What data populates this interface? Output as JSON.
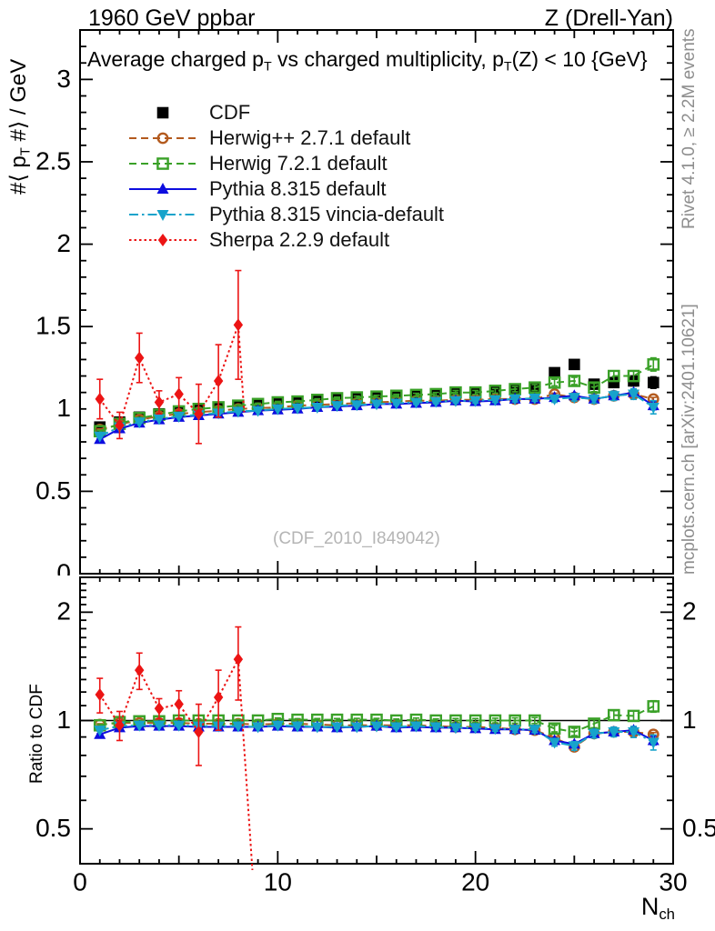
{
  "header": {
    "left": "1960 GeV ppbar",
    "right": "Z (Drell-Yan)"
  },
  "title_parts": {
    "pre": "Average charged p",
    "sub1": "T",
    "mid": " vs charged multiplicity, p",
    "sub2": "T",
    "post": "(Z) < 10 {GeV}"
  },
  "side_notes": {
    "top": "Rivet 4.1.0, ≥ 2.2M events",
    "bottom": "mcplots.cern.ch [arXiv:2401.10621]"
  },
  "watermark": "(CDF_2010_I849042)",
  "axes": {
    "x": {
      "min": 0,
      "max": 30,
      "major": [
        0,
        10,
        20,
        30
      ],
      "labels": [
        "0",
        "10",
        "20",
        "30"
      ],
      "mid_step": 5,
      "minor_step": 1,
      "label": "N",
      "label_sub": "ch"
    },
    "y_main": {
      "scale": "linear",
      "min": 0,
      "max": 3.3,
      "minor_step": 0.1,
      "major": [
        0,
        0.5,
        1,
        1.5,
        2,
        2.5,
        3
      ],
      "labels": [
        "0",
        "0.5",
        "1",
        "1.5",
        "2",
        "2.5",
        "3"
      ],
      "title_pre": "#⟨ p",
      "title_sub": "T",
      "title_post": " #⟩ / GeV"
    },
    "y_ratio": {
      "scale": "log",
      "min": 0.4,
      "max": 2.5,
      "major": [
        0.5,
        1,
        2
      ],
      "labels": [
        "0.5",
        "1",
        "2"
      ],
      "minor": [
        0.4,
        0.6,
        0.7,
        0.8,
        0.9,
        1.1,
        1.2,
        1.3,
        1.4,
        1.5,
        1.6,
        1.7,
        1.8,
        1.9,
        2.1,
        2.2,
        2.3,
        2.4
      ],
      "title": "Ratio to CDF",
      "reference_line": 1
    }
  },
  "chart_data": {
    "type": "line",
    "x": [
      1,
      2,
      3,
      4,
      5,
      6,
      7,
      8,
      9,
      10,
      11,
      12,
      13,
      14,
      15,
      16,
      17,
      18,
      19,
      20,
      21,
      22,
      23,
      24,
      25,
      26,
      27,
      28,
      29
    ],
    "series": [
      {
        "name": "CDF",
        "color": "#000000",
        "marker": "square",
        "filled": true,
        "line": "none",
        "main": {
          "y": [
            0.89,
            0.92,
            0.95,
            0.97,
            0.985,
            1.0,
            1.01,
            1.02,
            1.03,
            1.03,
            1.04,
            1.05,
            1.06,
            1.065,
            1.07,
            1.08,
            1.08,
            1.09,
            1.1,
            1.1,
            1.11,
            1.12,
            1.13,
            1.22,
            1.27,
            1.15,
            1.16,
            1.17,
            1.16
          ],
          "err": [
            0.02,
            0.015,
            0.012,
            0.01,
            0.01,
            0.01,
            0.01,
            0.01,
            0.01,
            0.01,
            0.01,
            0.01,
            0.01,
            0.01,
            0.01,
            0.01,
            0.01,
            0.01,
            0.012,
            0.012,
            0.014,
            0.015,
            0.016,
            0.02,
            0.022,
            0.025,
            0.028,
            0.03,
            0.035
          ]
        },
        "ratio": null
      },
      {
        "name": "Herwig++ 2.7.1 default",
        "color": "#b35a1e",
        "marker": "circle",
        "filled": false,
        "line": "dashed",
        "main": {
          "y": [
            0.875,
            0.905,
            0.935,
            0.955,
            0.97,
            0.98,
            0.99,
            1.0,
            1.005,
            1.01,
            1.02,
            1.025,
            1.03,
            1.035,
            1.04,
            1.045,
            1.05,
            1.05,
            1.055,
            1.055,
            1.06,
            1.06,
            1.06,
            1.09,
            1.07,
            1.06,
            1.08,
            1.09,
            1.06
          ],
          "err": [
            0.004,
            0.004,
            0.004,
            0.004,
            0.004,
            0.004,
            0.004,
            0.004,
            0.004,
            0.004,
            0.004,
            0.004,
            0.004,
            0.004,
            0.004,
            0.004,
            0.004,
            0.004,
            0.004,
            0.004,
            0.005,
            0.005,
            0.005,
            0.006,
            0.006,
            0.007,
            0.008,
            0.009,
            0.01
          ]
        },
        "ratio": {
          "y": [
            0.975,
            0.985,
            0.985,
            0.985,
            0.985,
            0.98,
            0.98,
            0.98,
            0.975,
            0.98,
            0.98,
            0.975,
            0.97,
            0.97,
            0.97,
            0.97,
            0.97,
            0.965,
            0.96,
            0.96,
            0.955,
            0.945,
            0.94,
            0.895,
            0.845,
            0.92,
            0.93,
            0.93,
            0.915
          ],
          "err": [
            0.005,
            0.005,
            0.005,
            0.005,
            0.005,
            0.005,
            0.005,
            0.005,
            0.005,
            0.005,
            0.005,
            0.005,
            0.005,
            0.005,
            0.005,
            0.005,
            0.005,
            0.005,
            0.005,
            0.005,
            0.006,
            0.006,
            0.006,
            0.007,
            0.007,
            0.008,
            0.009,
            0.01,
            0.011
          ]
        }
      },
      {
        "name": "Herwig 7.2.1 default",
        "color": "#3aa128",
        "marker": "square",
        "filled": false,
        "line": "dashed",
        "main": {
          "y": [
            0.865,
            0.91,
            0.945,
            0.965,
            0.985,
            1.0,
            1.01,
            1.02,
            1.03,
            1.04,
            1.045,
            1.055,
            1.065,
            1.07,
            1.075,
            1.08,
            1.085,
            1.09,
            1.1,
            1.1,
            1.11,
            1.12,
            1.13,
            1.16,
            1.17,
            1.13,
            1.2,
            1.2,
            1.27
          ],
          "err": [
            0.005,
            0.005,
            0.005,
            0.005,
            0.005,
            0.005,
            0.005,
            0.005,
            0.005,
            0.006,
            0.006,
            0.007,
            0.007,
            0.008,
            0.008,
            0.009,
            0.01,
            0.01,
            0.012,
            0.012,
            0.014,
            0.016,
            0.018,
            0.02,
            0.022,
            0.025,
            0.03,
            0.032,
            0.04
          ]
        },
        "ratio": {
          "y": [
            0.97,
            0.99,
            0.995,
            0.995,
            1.0,
            1.0,
            1.0,
            1.0,
            1.0,
            1.01,
            1.005,
            1.005,
            1.005,
            1.005,
            1.005,
            1.0,
            1.005,
            1.0,
            1.0,
            1.0,
            1.0,
            1.0,
            1.0,
            0.95,
            0.93,
            0.98,
            1.035,
            1.03,
            1.095
          ],
          "err": [
            0.006,
            0.006,
            0.006,
            0.006,
            0.006,
            0.006,
            0.006,
            0.006,
            0.006,
            0.007,
            0.007,
            0.008,
            0.008,
            0.009,
            0.009,
            0.01,
            0.011,
            0.011,
            0.013,
            0.013,
            0.015,
            0.017,
            0.019,
            0.02,
            0.022,
            0.025,
            0.03,
            0.032,
            0.04
          ]
        }
      },
      {
        "name": "Pythia 8.315 default",
        "color": "#0d0ddf",
        "marker": "triangle-up",
        "filled": true,
        "line": "solid",
        "main": {
          "y": [
            0.815,
            0.88,
            0.915,
            0.935,
            0.95,
            0.96,
            0.97,
            0.98,
            0.99,
            0.995,
            1.0,
            1.01,
            1.015,
            1.02,
            1.03,
            1.03,
            1.035,
            1.04,
            1.05,
            1.045,
            1.05,
            1.06,
            1.06,
            1.07,
            1.08,
            1.06,
            1.08,
            1.1,
            1.02
          ],
          "err": [
            0.004,
            0.004,
            0.004,
            0.004,
            0.004,
            0.004,
            0.004,
            0.004,
            0.004,
            0.005,
            0.005,
            0.005,
            0.006,
            0.006,
            0.007,
            0.007,
            0.008,
            0.008,
            0.009,
            0.01,
            0.01,
            0.012,
            0.012,
            0.014,
            0.015,
            0.016,
            0.018,
            0.02,
            0.025
          ]
        },
        "ratio": {
          "y": [
            0.915,
            0.955,
            0.965,
            0.965,
            0.965,
            0.96,
            0.96,
            0.96,
            0.96,
            0.965,
            0.96,
            0.96,
            0.955,
            0.96,
            0.965,
            0.955,
            0.96,
            0.955,
            0.955,
            0.95,
            0.945,
            0.945,
            0.94,
            0.88,
            0.86,
            0.92,
            0.93,
            0.94,
            0.88
          ],
          "err": [
            0.004,
            0.004,
            0.004,
            0.004,
            0.004,
            0.004,
            0.004,
            0.004,
            0.004,
            0.005,
            0.005,
            0.005,
            0.006,
            0.006,
            0.007,
            0.007,
            0.008,
            0.008,
            0.009,
            0.01,
            0.01,
            0.012,
            0.012,
            0.014,
            0.015,
            0.016,
            0.018,
            0.02,
            0.025
          ]
        }
      },
      {
        "name": "Pythia 8.315 vincia-default",
        "color": "#17a3cb",
        "marker": "triangle-down",
        "filled": true,
        "line": "dashdot",
        "main": {
          "y": [
            0.835,
            0.89,
            0.92,
            0.94,
            0.955,
            0.965,
            0.975,
            0.985,
            0.99,
            1.0,
            1.005,
            1.01,
            1.02,
            1.025,
            1.03,
            1.035,
            1.04,
            1.045,
            1.05,
            1.05,
            1.055,
            1.06,
            1.065,
            1.06,
            1.07,
            1.06,
            1.08,
            1.09,
            1.01
          ],
          "err": [
            0.006,
            0.005,
            0.005,
            0.005,
            0.005,
            0.005,
            0.005,
            0.005,
            0.005,
            0.006,
            0.006,
            0.007,
            0.007,
            0.008,
            0.009,
            0.01,
            0.011,
            0.012,
            0.013,
            0.014,
            0.015,
            0.017,
            0.018,
            0.02,
            0.022,
            0.025,
            0.028,
            0.032,
            0.04
          ]
        },
        "ratio": {
          "y": [
            0.94,
            0.965,
            0.97,
            0.97,
            0.97,
            0.965,
            0.965,
            0.965,
            0.96,
            0.97,
            0.965,
            0.96,
            0.96,
            0.96,
            0.965,
            0.96,
            0.965,
            0.96,
            0.955,
            0.955,
            0.95,
            0.945,
            0.945,
            0.87,
            0.85,
            0.92,
            0.93,
            0.93,
            0.87
          ],
          "err": [
            0.007,
            0.006,
            0.006,
            0.006,
            0.006,
            0.006,
            0.006,
            0.006,
            0.006,
            0.007,
            0.007,
            0.008,
            0.008,
            0.009,
            0.01,
            0.011,
            0.012,
            0.013,
            0.014,
            0.015,
            0.016,
            0.018,
            0.019,
            0.021,
            0.023,
            0.026,
            0.029,
            0.033,
            0.042
          ]
        }
      },
      {
        "name": "Sherpa 2.2.9 default",
        "color": "#ec1414",
        "marker": "diamond",
        "filled": true,
        "line": "dotted",
        "main": {
          "y": [
            1.06,
            0.9,
            1.31,
            1.04,
            1.09,
            0.97,
            1.17,
            1.51
          ],
          "err": [
            0.12,
            0.08,
            0.15,
            0.07,
            0.1,
            0.18,
            0.22,
            0.33
          ]
        },
        "main_tail": [
          [
            8,
            1.51
          ],
          [
            8.3,
            0.98
          ]
        ],
        "ratio": {
          "y": [
            1.18,
            0.97,
            1.38,
            1.08,
            1.11,
            0.93,
            1.16,
            1.48
          ],
          "err": [
            0.13,
            0.09,
            0.16,
            0.07,
            0.1,
            0.18,
            0.22,
            0.34
          ]
        },
        "ratio_tail": [
          [
            8,
            1.48
          ],
          [
            8.85,
            0.3
          ]
        ]
      }
    ]
  }
}
